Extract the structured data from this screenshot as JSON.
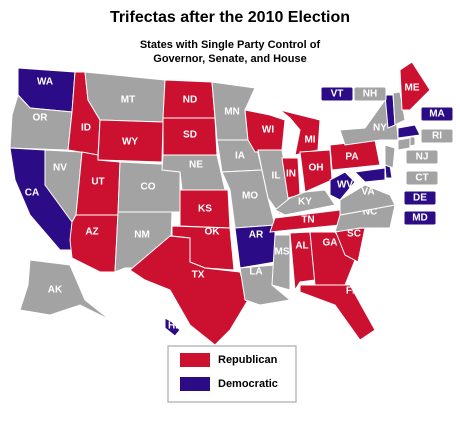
{
  "title": "Trifectas after the 2010 Election",
  "subtitle": [
    "States with Single Party Control of",
    "Governor, Senate, and House"
  ],
  "legend": [
    {
      "label": "Republican",
      "color": "#cc1030"
    },
    {
      "label": "Democratic",
      "color": "#2c0c86"
    }
  ],
  "no_control_color": "#a3a3a3",
  "states": [
    {
      "abbr": "WA",
      "control": "Democratic"
    },
    {
      "abbr": "OR",
      "control": null
    },
    {
      "abbr": "CA",
      "control": "Democratic"
    },
    {
      "abbr": "NV",
      "control": null
    },
    {
      "abbr": "ID",
      "control": "Republican"
    },
    {
      "abbr": "MT",
      "control": null
    },
    {
      "abbr": "WY",
      "control": "Republican"
    },
    {
      "abbr": "UT",
      "control": "Republican"
    },
    {
      "abbr": "AZ",
      "control": "Republican"
    },
    {
      "abbr": "CO",
      "control": null
    },
    {
      "abbr": "NM",
      "control": null
    },
    {
      "abbr": "ND",
      "control": "Republican"
    },
    {
      "abbr": "SD",
      "control": "Republican"
    },
    {
      "abbr": "NE",
      "control": null
    },
    {
      "abbr": "KS",
      "control": "Republican"
    },
    {
      "abbr": "OK",
      "control": "Republican"
    },
    {
      "abbr": "TX",
      "control": "Republican"
    },
    {
      "abbr": "MN",
      "control": null
    },
    {
      "abbr": "IA",
      "control": null
    },
    {
      "abbr": "MO",
      "control": null
    },
    {
      "abbr": "AR",
      "control": "Democratic"
    },
    {
      "abbr": "LA",
      "control": null
    },
    {
      "abbr": "WI",
      "control": "Republican"
    },
    {
      "abbr": "IL",
      "control": null
    },
    {
      "abbr": "MI",
      "control": "Republican"
    },
    {
      "abbr": "IN",
      "control": "Republican"
    },
    {
      "abbr": "OH",
      "control": "Republican"
    },
    {
      "abbr": "KY",
      "control": null
    },
    {
      "abbr": "TN",
      "control": "Republican"
    },
    {
      "abbr": "MS",
      "control": null
    },
    {
      "abbr": "AL",
      "control": "Republican"
    },
    {
      "abbr": "GA",
      "control": "Republican"
    },
    {
      "abbr": "FL",
      "control": "Republican"
    },
    {
      "abbr": "SC",
      "control": "Republican"
    },
    {
      "abbr": "NC",
      "control": null
    },
    {
      "abbr": "VA",
      "control": null
    },
    {
      "abbr": "WV",
      "control": "Democratic"
    },
    {
      "abbr": "PA",
      "control": "Republican"
    },
    {
      "abbr": "NY",
      "control": null
    },
    {
      "abbr": "MD",
      "control": "Democratic"
    },
    {
      "abbr": "DE",
      "control": "Democratic"
    },
    {
      "abbr": "NJ",
      "control": null
    },
    {
      "abbr": "CT",
      "control": null
    },
    {
      "abbr": "RI",
      "control": null
    },
    {
      "abbr": "MA",
      "control": "Democratic"
    },
    {
      "abbr": "VT",
      "control": "Democratic"
    },
    {
      "abbr": "NH",
      "control": null
    },
    {
      "abbr": "ME",
      "control": "Republican"
    },
    {
      "abbr": "AK",
      "control": null
    },
    {
      "abbr": "HI",
      "control": "Democratic"
    }
  ]
}
